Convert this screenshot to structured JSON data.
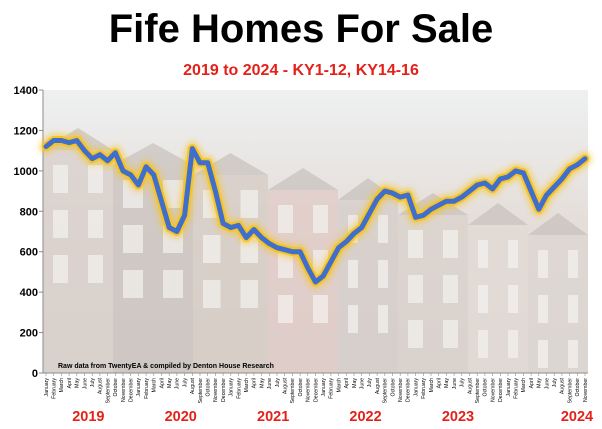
{
  "chart_data": {
    "type": "line",
    "title": "Fife Homes For Sale",
    "subtitle": "2019 to 2024 - KY1-12, KY14-16",
    "source_note": "Raw data from TwentyEA & compiled by Denton House Research",
    "ylim": [
      0,
      1400
    ],
    "yticks": [
      "0",
      "200",
      "400",
      "600",
      "800",
      "1000",
      "1200",
      "1400"
    ],
    "months": [
      "January",
      "February",
      "March",
      "April",
      "May",
      "June",
      "July",
      "August",
      "September",
      "October",
      "November",
      "December"
    ],
    "year_labels": [
      "2019",
      "2020",
      "2021",
      "2022",
      "2023",
      "2024"
    ],
    "series": [
      {
        "values": [
          1120,
          1150,
          1150,
          1140,
          1150,
          1100,
          1060,
          1080,
          1050,
          1090,
          1000,
          980,
          930,
          1020,
          980,
          850,
          720,
          700,
          780,
          1110,
          1040,
          1040,
          900,
          740,
          720,
          730,
          670,
          710,
          670,
          640,
          620,
          610,
          600,
          600,
          520,
          450,
          480,
          550,
          620,
          650,
          690,
          720,
          790,
          860,
          900,
          890,
          870,
          880,
          770,
          780,
          810,
          830,
          850,
          850,
          870,
          900,
          930,
          940,
          910,
          960,
          970,
          1000,
          990,
          900,
          810,
          880,
          920,
          960,
          1010,
          1030,
          1060
        ]
      }
    ],
    "colors": {
      "line": "#3f6ecc",
      "glow": "#f7c21a",
      "subtitle": "#e32119",
      "year_labels": "#e32119"
    }
  }
}
